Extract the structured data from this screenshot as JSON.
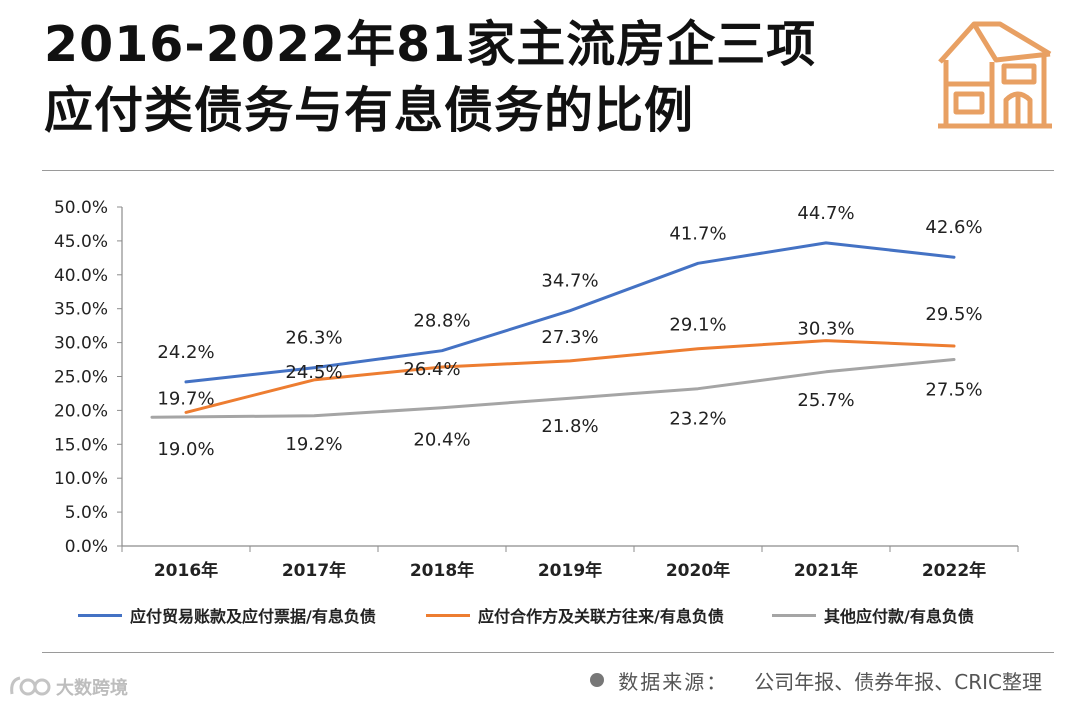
{
  "title": {
    "line1": "2016-2022年81家主流房企三项",
    "line2": "应付类债务与有息债务的比例"
  },
  "colors": {
    "blue": "#4472C4",
    "orange": "#ED7D31",
    "gray": "#A5A5A5",
    "logo": "#E8A063"
  },
  "source": {
    "label": "数据来源：",
    "text": "公司年报、债券年报、CRIC整理"
  },
  "watermark": {
    "text": "大数跨境"
  },
  "chart_data": {
    "type": "line",
    "title": "2016-2022年81家主流房企三项应付类债务与有息债务的比例",
    "categories": [
      "2016年",
      "2017年",
      "2018年",
      "2019年",
      "2020年",
      "2021年",
      "2022年"
    ],
    "ylim": [
      0,
      50
    ],
    "yticks": [
      "0.0%",
      "5.0%",
      "10.0%",
      "15.0%",
      "20.0%",
      "25.0%",
      "30.0%",
      "35.0%",
      "40.0%",
      "45.0%",
      "50.0%"
    ],
    "legend_position": "bottom",
    "series": [
      {
        "name": "应付贸易账款及应付票据/有息负债",
        "color": "#4472C4",
        "values": [
          24.2,
          26.3,
          28.8,
          34.7,
          41.7,
          44.7,
          42.6
        ],
        "labels": [
          "24.2%",
          "26.3%",
          "28.8%",
          "34.7%",
          "41.7%",
          "44.7%",
          "42.6%"
        ]
      },
      {
        "name": "应付合作方及关联方往来/有息负债",
        "color": "#ED7D31",
        "values": [
          19.7,
          24.5,
          26.4,
          27.3,
          29.1,
          30.3,
          29.5
        ],
        "labels": [
          "19.7%",
          "24.5%",
          "26.4%",
          "27.3%",
          "29.1%",
          "30.3%",
          "29.5%"
        ]
      },
      {
        "name": "其他应付款/有息负债",
        "color": "#A5A5A5",
        "values": [
          19.0,
          19.2,
          20.4,
          21.8,
          23.2,
          25.7,
          27.5
        ],
        "labels": [
          "19.0%",
          "19.2%",
          "20.4%",
          "21.8%",
          "23.2%",
          "25.7%",
          "27.5%"
        ]
      }
    ]
  }
}
